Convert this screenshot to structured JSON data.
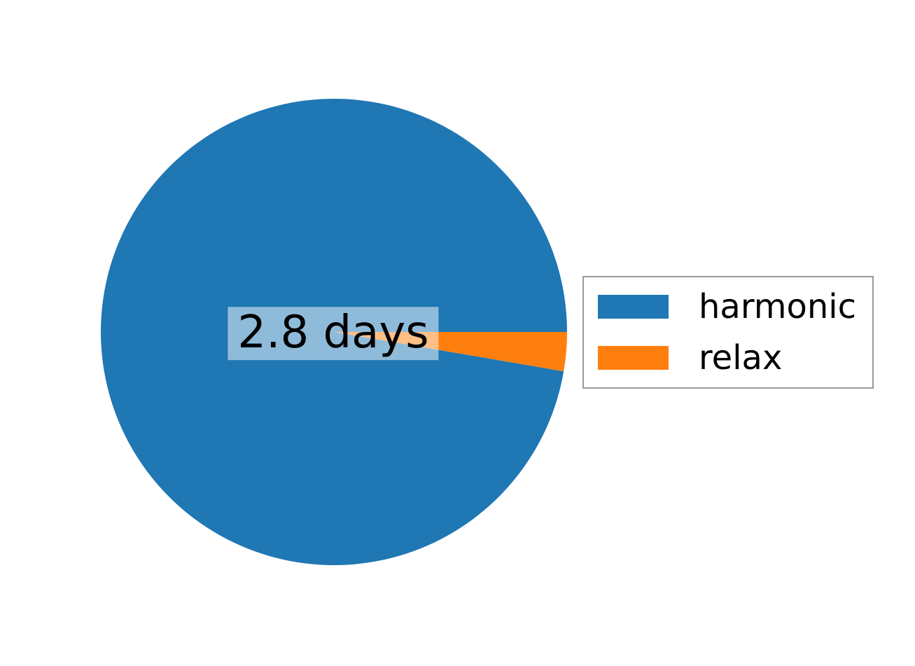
{
  "figure": {
    "background_color": "#ffffff"
  },
  "chart_data": {
    "type": "pie",
    "labels": [
      "harmonic",
      "relax"
    ],
    "values": [
      97.3,
      2.7
    ],
    "value_units": "percent of total (estimated from wedge angles)",
    "colors": [
      "#1f77b4",
      "#ff7f0e"
    ],
    "start_angle_deg": 0,
    "direction": "counterclockwise",
    "center_label": "2.8 days",
    "center_label_bg": "rgba(255,255,255,0.5)",
    "legend": {
      "position": "center right",
      "border_color": "#9a9a9a",
      "entries": [
        {
          "label": "harmonic",
          "color": "#1f77b4"
        },
        {
          "label": "relax",
          "color": "#ff7f0e"
        }
      ]
    }
  }
}
